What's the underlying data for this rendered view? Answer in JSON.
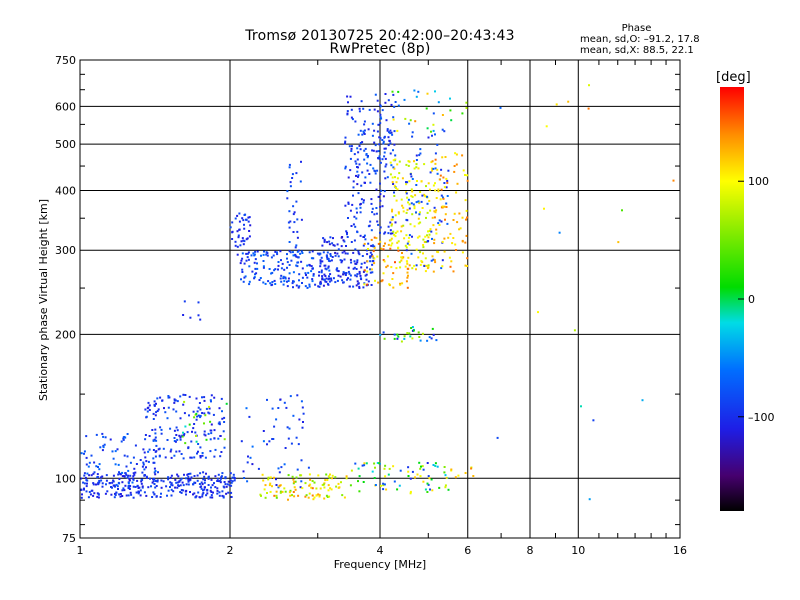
{
  "chart_data": {
    "type": "scatter",
    "title": "Tromsø 20130725 20:42:00–20:43:43",
    "subtitle": "RwPretec (8p)",
    "xlabel": "Frequency [MHz]",
    "ylabel": "Stationary phase Virtual Height [km]",
    "x_scale": "log",
    "y_scale": "log",
    "xlim": [
      1,
      16
    ],
    "ylim": [
      75,
      750
    ],
    "x_ticks": [
      1,
      2,
      4,
      6,
      8,
      10,
      16
    ],
    "x_tick_labels": [
      "1",
      "2",
      "4",
      "6",
      "8",
      "10",
      "16"
    ],
    "y_ticks": [
      75,
      100,
      200,
      300,
      400,
      500,
      600,
      750
    ],
    "y_tick_labels": [
      "75",
      "100",
      "200",
      "300",
      "400",
      "500",
      "600",
      "750"
    ],
    "grid": true,
    "stats": {
      "title": "Phase",
      "line_o": "mean, sd,O: –91.2, 17.8",
      "line_x": "mean, sd,X:  88.5, 22.1"
    },
    "colorbar": {
      "label": "[deg]",
      "range": [
        -180,
        180
      ],
      "ticks": [
        100,
        0,
        -100
      ],
      "tick_labels": [
        "100",
        "0",
        "–100"
      ]
    },
    "clusters": [
      {
        "f": [
          1.0,
          2.05
        ],
        "h": [
          91,
          103
        ],
        "ph": [
          -115,
          -80
        ],
        "n": 320
      },
      {
        "f": [
          1.0,
          1.45
        ],
        "h": [
          96,
          125
        ],
        "ph": [
          -110,
          -60
        ],
        "n": 90
      },
      {
        "f": [
          1.35,
          1.95
        ],
        "h": [
          110,
          150
        ],
        "ph": [
          -115,
          -70
        ],
        "n": 170
      },
      {
        "f": [
          1.6,
          2.0
        ],
        "h": [
          114,
          145
        ],
        "ph": [
          -20,
          100
        ],
        "n": 18
      },
      {
        "f": [
          2.1,
          2.9
        ],
        "h": [
          95,
          150
        ],
        "ph": [
          -115,
          -60
        ],
        "n": 55
      },
      {
        "f": [
          2.3,
          3.5
        ],
        "h": [
          91,
          102
        ],
        "ph": [
          40,
          130
        ],
        "n": 85
      },
      {
        "f": [
          2.4,
          3.1
        ],
        "h": [
          90,
          97
        ],
        "ph": [
          110,
          165
        ],
        "n": 18
      },
      {
        "f": [
          3.5,
          5.5
        ],
        "h": [
          93,
          108
        ],
        "ph": [
          -110,
          120
        ],
        "n": 75
      },
      {
        "f": [
          5.5,
          6.2
        ],
        "h": [
          100,
          106
        ],
        "ph": [
          80,
          150
        ],
        "n": 8
      },
      {
        "f": [
          2.0,
          2.2
        ],
        "h": [
          280,
          360
        ],
        "ph": [
          -115,
          -80
        ],
        "n": 45
      },
      {
        "f": [
          2.1,
          3.2
        ],
        "h": [
          250,
          300
        ],
        "ph": [
          -110,
          -60
        ],
        "n": 170
      },
      {
        "f": [
          2.6,
          2.8
        ],
        "h": [
          290,
          460
        ],
        "ph": [
          -110,
          -70
        ],
        "n": 30
      },
      {
        "f": [
          3.0,
          3.9
        ],
        "h": [
          250,
          320
        ],
        "ph": [
          -120,
          -80
        ],
        "n": 170
      },
      {
        "f": [
          3.4,
          4.3
        ],
        "h": [
          320,
          640
        ],
        "ph": [
          -115,
          -70
        ],
        "n": 180
      },
      {
        "f": [
          3.6,
          4.3
        ],
        "h": [
          430,
          560
        ],
        "ph": [
          -110,
          -60
        ],
        "n": 40
      },
      {
        "f": [
          3.7,
          4.6
        ],
        "h": [
          250,
          320
        ],
        "ph": [
          90,
          160
        ],
        "n": 60
      },
      {
        "f": [
          4.2,
          5.1
        ],
        "h": [
          270,
          470
        ],
        "ph": [
          70,
          120
        ],
        "n": 150
      },
      {
        "f": [
          4.5,
          5.5
        ],
        "h": [
          270,
          560
        ],
        "ph": [
          -110,
          -60
        ],
        "n": 70
      },
      {
        "f": [
          5.1,
          6.0
        ],
        "h": [
          270,
          480
        ],
        "ph": [
          95,
          150
        ],
        "n": 90
      },
      {
        "f": [
          4.2,
          6.0
        ],
        "h": [
          520,
          650
        ],
        "ph": [
          -80,
          140
        ],
        "n": 30
      },
      {
        "f": [
          4.0,
          5.2
        ],
        "h": [
          193,
          208
        ],
        "ph": [
          -110,
          100
        ],
        "n": 30
      },
      {
        "f": [
          1.6,
          1.75
        ],
        "h": [
          210,
          235
        ],
        "ph": [
          -110,
          -90
        ],
        "n": 6
      },
      {
        "f": [
          6.3,
          16
        ],
        "h": [
          80,
          700
        ],
        "ph": [
          -110,
          150
        ],
        "n": 18
      }
    ]
  }
}
